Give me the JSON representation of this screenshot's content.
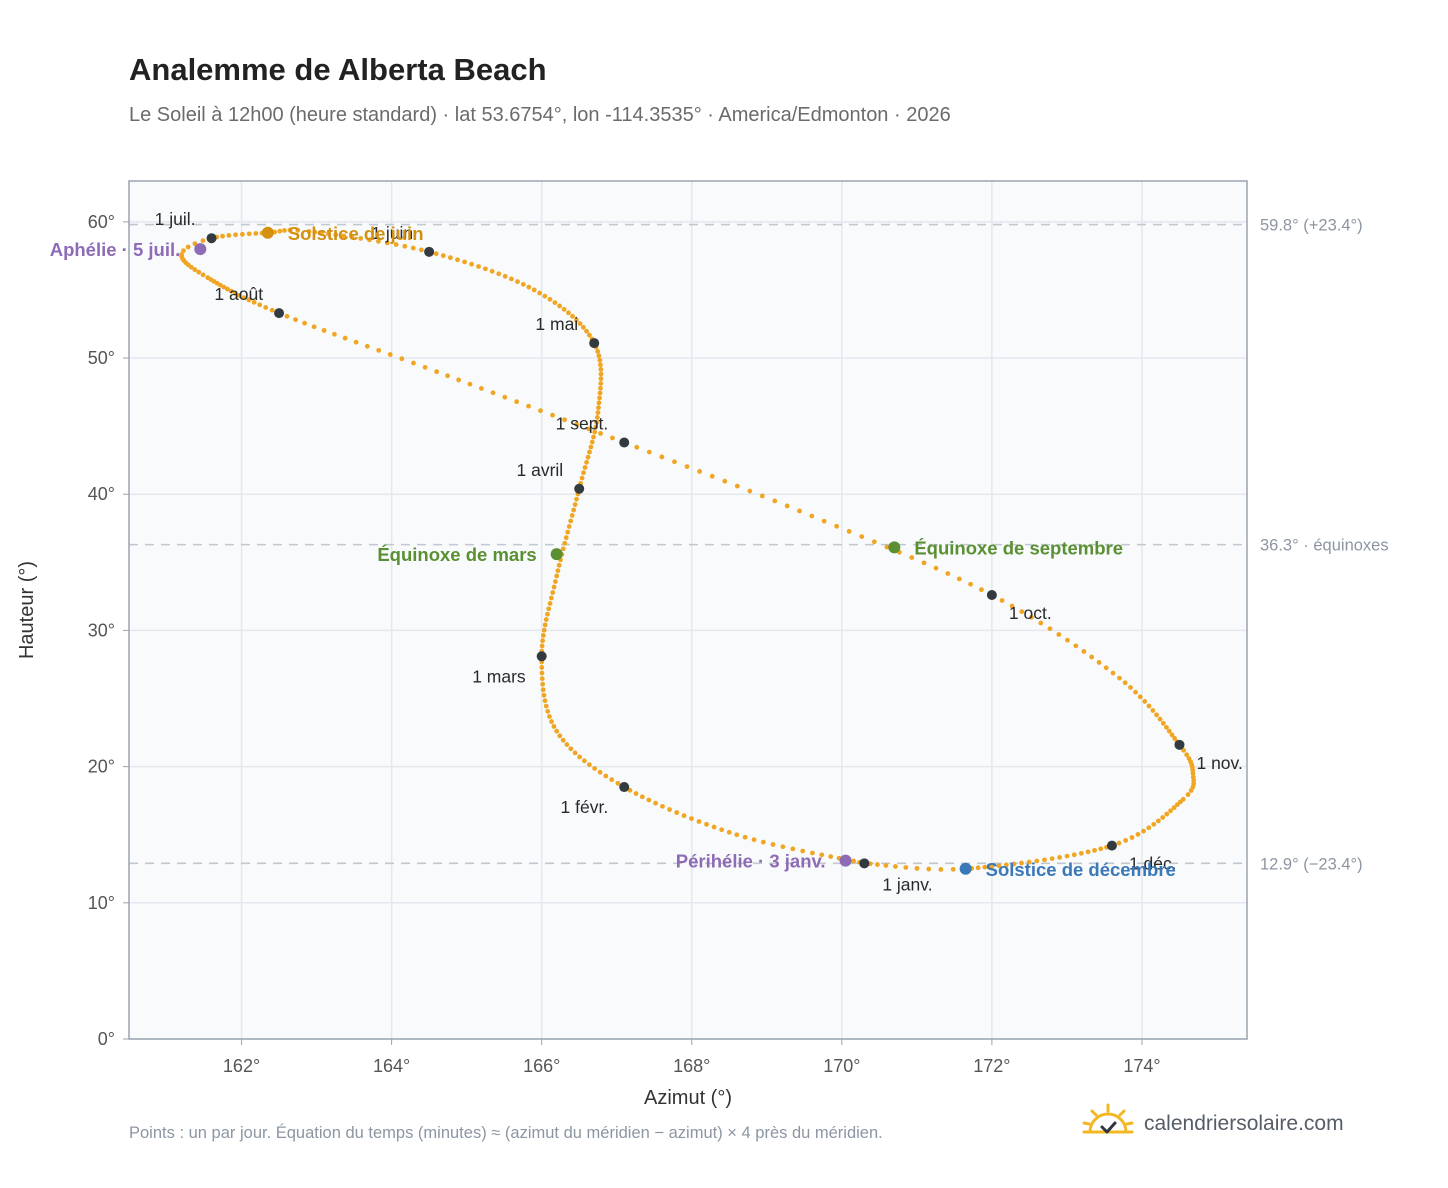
{
  "title": "Analemme de Alberta Beach",
  "subtitle": "Le Soleil à 12h00 (heure standard) · lat 53.6754°, lon -114.3535° · America/Edmonton · 2026",
  "footnote": "Points : un par jour. Équation du temps (minutes) ≈ (azimut du méridien − azimut) × 4 près du méridien.",
  "brand": {
    "name": "calendriersolaire.com",
    "icon": "sun-logo-icon"
  },
  "colors": {
    "curve": "#f0a623",
    "month_marker": "#333a40",
    "solstice_june": "#d4900f",
    "solstice_december": "#3a78b8",
    "equinox": "#5a8f32",
    "apsis": "#8e6bb5",
    "grid": "#e4e8ee",
    "plot_bg": "#f8fafc",
    "reference_line": "#c0c8d2"
  },
  "chart_data": {
    "type": "scatter",
    "title": "Analemme de Alberta Beach",
    "xlabel": "Azimut (°)",
    "ylabel": "Hauteur (°)",
    "xlim": [
      160.5,
      175.4
    ],
    "ylim": [
      0,
      63
    ],
    "grid": true,
    "x_ticks": [
      162,
      164,
      166,
      168,
      170,
      172,
      174
    ],
    "x_tick_labels": [
      "162°",
      "164°",
      "166°",
      "168°",
      "170°",
      "172°",
      "174°"
    ],
    "y_ticks": [
      0,
      10,
      20,
      30,
      40,
      50,
      60
    ],
    "y_tick_labels": [
      "0°",
      "10°",
      "20°",
      "30°",
      "40°",
      "50°",
      "60°"
    ],
    "reference_lines": [
      {
        "y": 59.8,
        "label": "59.8° (+23.4°)"
      },
      {
        "y": 36.3,
        "label": "36.3° · équinoxes"
      },
      {
        "y": 12.9,
        "label": "12.9° (−23.4°)"
      }
    ],
    "month_points": [
      {
        "label": "1 janv.",
        "az": 170.3,
        "alt": 12.9,
        "pos": "below"
      },
      {
        "label": "1 févr.",
        "az": 167.1,
        "alt": 18.5,
        "pos": "below-left"
      },
      {
        "label": "1 mars",
        "az": 166.0,
        "alt": 28.1,
        "pos": "below-left"
      },
      {
        "label": "1 avril",
        "az": 166.5,
        "alt": 40.4,
        "pos": "above-left"
      },
      {
        "label": "1 mai",
        "az": 166.7,
        "alt": 51.1,
        "pos": "above-left"
      },
      {
        "label": "1 juin",
        "az": 164.5,
        "alt": 57.8,
        "pos": "above-left"
      },
      {
        "label": "1 juil.",
        "az": 161.6,
        "alt": 58.8,
        "pos": "above-left"
      },
      {
        "label": "1 août",
        "az": 162.5,
        "alt": 53.3,
        "pos": "above-left"
      },
      {
        "label": "1 sept.",
        "az": 167.1,
        "alt": 43.8,
        "pos": "above-left"
      },
      {
        "label": "1 oct.",
        "az": 172.0,
        "alt": 32.6,
        "pos": "below-right"
      },
      {
        "label": "1 nov.",
        "az": 174.5,
        "alt": 21.6,
        "pos": "right"
      },
      {
        "label": "1 déc.",
        "az": 173.6,
        "alt": 14.2,
        "pos": "below-right"
      }
    ],
    "events": [
      {
        "label": "Solstice de juin",
        "az": 162.35,
        "alt": 59.2,
        "kind": "solstice_june",
        "pos": "right"
      },
      {
        "label": "Solstice de décembre",
        "az": 171.65,
        "alt": 12.5,
        "kind": "solstice_december",
        "pos": "right"
      },
      {
        "label": "Équinoxe de mars",
        "az": 166.2,
        "alt": 35.6,
        "kind": "equinox",
        "pos": "left"
      },
      {
        "label": "Équinoxe de septembre",
        "az": 170.7,
        "alt": 36.1,
        "kind": "equinox",
        "pos": "right"
      },
      {
        "label": "Aphélie · 5 juil.",
        "az": 161.45,
        "alt": 58.0,
        "kind": "apsis",
        "pos": "left"
      },
      {
        "label": "Périhélie · 3 janv.",
        "az": 170.05,
        "alt": 13.1,
        "kind": "apsis",
        "pos": "left"
      }
    ],
    "daily_curve_anchors": [
      {
        "day": 0,
        "az": 170.3,
        "alt": 12.9
      },
      {
        "day": 15,
        "az": 168.6,
        "alt": 15.0
      },
      {
        "day": 31,
        "az": 167.1,
        "alt": 18.5
      },
      {
        "day": 45,
        "az": 166.2,
        "alt": 22.6
      },
      {
        "day": 59,
        "az": 166.0,
        "alt": 28.1
      },
      {
        "day": 74,
        "az": 166.2,
        "alt": 34.0
      },
      {
        "day": 90,
        "az": 166.5,
        "alt": 40.4
      },
      {
        "day": 105,
        "az": 166.75,
        "alt": 46.0
      },
      {
        "day": 120,
        "az": 166.7,
        "alt": 51.1
      },
      {
        "day": 135,
        "az": 165.9,
        "alt": 55.0
      },
      {
        "day": 151,
        "az": 164.5,
        "alt": 57.8
      },
      {
        "day": 166,
        "az": 162.9,
        "alt": 59.3
      },
      {
        "day": 172,
        "az": 162.35,
        "alt": 59.2
      },
      {
        "day": 181,
        "az": 161.6,
        "alt": 58.8
      },
      {
        "day": 186,
        "az": 161.2,
        "alt": 57.6
      },
      {
        "day": 196,
        "az": 161.55,
        "alt": 55.9
      },
      {
        "day": 212,
        "az": 162.5,
        "alt": 53.3
      },
      {
        "day": 227,
        "az": 164.6,
        "alt": 49.0
      },
      {
        "day": 243,
        "az": 167.1,
        "alt": 43.8
      },
      {
        "day": 258,
        "az": 169.6,
        "alt": 38.4
      },
      {
        "day": 273,
        "az": 172.0,
        "alt": 32.6
      },
      {
        "day": 288,
        "az": 173.7,
        "alt": 26.5
      },
      {
        "day": 304,
        "az": 174.5,
        "alt": 21.6
      },
      {
        "day": 312,
        "az": 174.68,
        "alt": 19.5
      },
      {
        "day": 319,
        "az": 174.55,
        "alt": 17.6
      },
      {
        "day": 334,
        "az": 173.6,
        "alt": 14.2
      },
      {
        "day": 355,
        "az": 171.65,
        "alt": 12.5
      },
      {
        "day": 365,
        "az": 170.3,
        "alt": 12.9
      }
    ]
  }
}
